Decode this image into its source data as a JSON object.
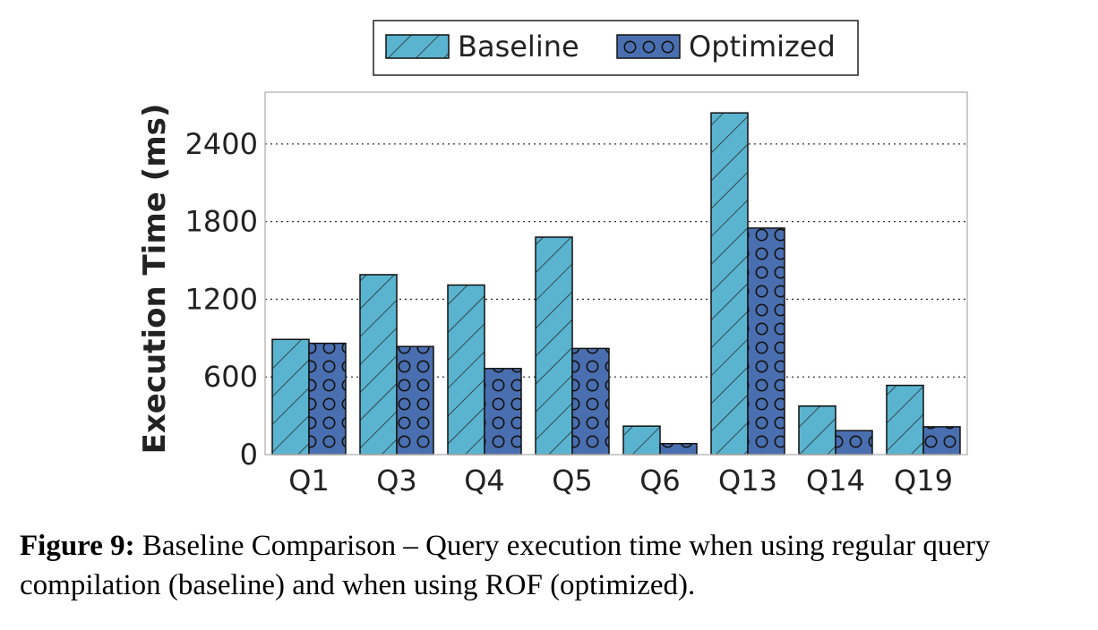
{
  "chart_data": {
    "type": "bar",
    "categories": [
      "Q1",
      "Q3",
      "Q4",
      "Q5",
      "Q6",
      "Q13",
      "Q14",
      "Q19"
    ],
    "series": [
      {
        "name": "Baseline",
        "values": [
          890,
          1390,
          1310,
          1680,
          220,
          2640,
          375,
          535
        ],
        "color": "#5bb4cf",
        "pattern": "diagonal-hatch"
      },
      {
        "name": "Optimized",
        "values": [
          860,
          835,
          665,
          820,
          85,
          1750,
          185,
          215
        ],
        "color": "#4a6fb0",
        "pattern": "circles"
      }
    ],
    "title": "",
    "xlabel": "",
    "ylabel": "Execution Time (ms)",
    "ylim": [
      0,
      2800
    ],
    "yticks": [
      0,
      600,
      1200,
      1800,
      2400
    ],
    "grid": "horizontal-dotted",
    "legend_position": "top-center"
  },
  "caption": {
    "label": "Figure 9:",
    "text": " Baseline Comparison – Query execution time when using regular query compilation (baseline) and when using ROF (optimized)."
  }
}
